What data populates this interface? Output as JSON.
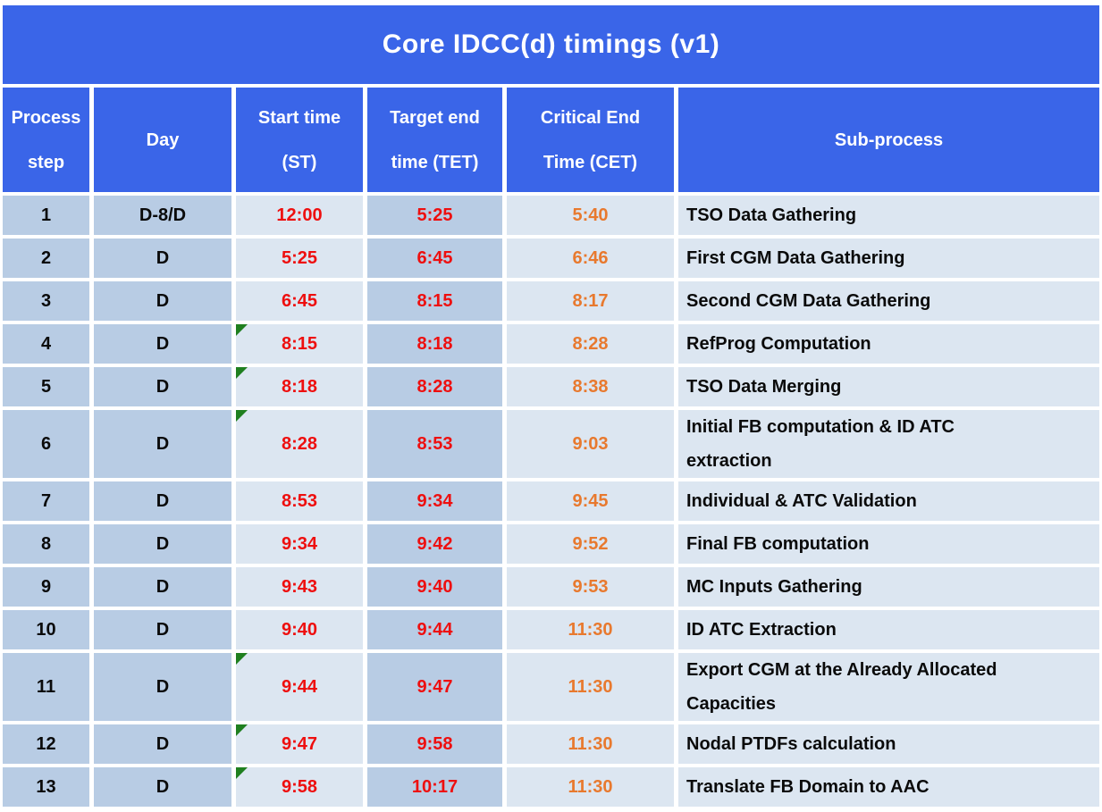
{
  "title": "Core IDCC(d) timings (v1)",
  "columns": {
    "step": "Process\nstep",
    "day": "Day",
    "st": "Start time\n(ST)",
    "tet": "Target end\ntime (TET)",
    "cet": "Critical End\nTime (CET)",
    "sub": "Sub-process"
  },
  "rows": [
    {
      "step": "1",
      "day": "D-8/D",
      "st": "12:00",
      "tet": "5:25",
      "cet": "5:40",
      "sub": "TSO Data Gathering",
      "flag": false
    },
    {
      "step": "2",
      "day": "D",
      "st": "5:25",
      "tet": "6:45",
      "cet": "6:46",
      "sub": "First CGM Data Gathering",
      "flag": false
    },
    {
      "step": "3",
      "day": "D",
      "st": "6:45",
      "tet": "8:15",
      "cet": "8:17",
      "sub": "Second CGM Data Gathering",
      "flag": false
    },
    {
      "step": "4",
      "day": "D",
      "st": "8:15",
      "tet": "8:18",
      "cet": "8:28",
      "sub": "RefProg Computation",
      "flag": true
    },
    {
      "step": "5",
      "day": "D",
      "st": "8:18",
      "tet": "8:28",
      "cet": "8:38",
      "sub": "TSO Data Merging",
      "flag": true
    },
    {
      "step": "6",
      "day": "D",
      "st": "8:28",
      "tet": "8:53",
      "cet": "9:03",
      "sub": "Initial FB computation & ID ATC\nextraction",
      "flag": true
    },
    {
      "step": "7",
      "day": "D",
      "st": "8:53",
      "tet": "9:34",
      "cet": "9:45",
      "sub": "Individual & ATC Validation",
      "flag": false
    },
    {
      "step": "8",
      "day": "D",
      "st": "9:34",
      "tet": "9:42",
      "cet": "9:52",
      "sub": "Final FB computation",
      "flag": false
    },
    {
      "step": "9",
      "day": "D",
      "st": "9:43",
      "tet": "9:40",
      "cet": "9:53",
      "sub": "MC Inputs Gathering",
      "flag": false
    },
    {
      "step": "10",
      "day": "D",
      "st": "9:40",
      "tet": "9:44",
      "cet": "11:30",
      "sub": "ID ATC Extraction",
      "flag": false
    },
    {
      "step": "11",
      "day": "D",
      "st": "9:44",
      "tet": "9:47",
      "cet": "11:30",
      "sub": "Export CGM at the Already Allocated\nCapacities",
      "flag": true
    },
    {
      "step": "12",
      "day": "D",
      "st": "9:47",
      "tet": "9:58",
      "cet": "11:30",
      "sub": "Nodal PTDFs calculation",
      "flag": true
    },
    {
      "step": "13",
      "day": "D",
      "st": "9:58",
      "tet": "10:17",
      "cet": "11:30",
      "sub": "Translate FB Domain to AAC",
      "flag": true
    }
  ],
  "icons": {
    "flag": "comment-flag-icon"
  },
  "colors": {
    "header-blue": "#3a65e8",
    "cell-dark": "#b8cce4",
    "cell-light": "#dce6f1",
    "time-red": "#ee0f0f",
    "cet-orange": "#e8792e",
    "flag-green": "#1f7f1f"
  }
}
